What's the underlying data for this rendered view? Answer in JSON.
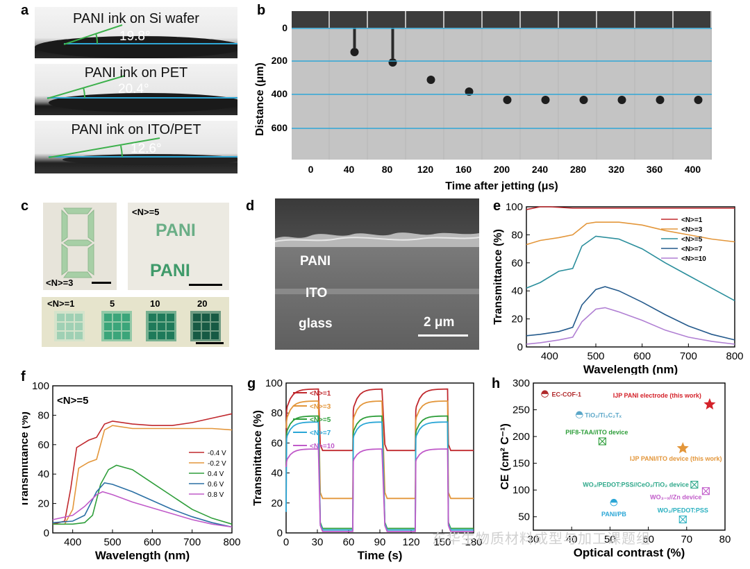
{
  "panel_labels": {
    "a": "a",
    "b": "b",
    "c": "c",
    "d": "d",
    "e": "e",
    "f": "f",
    "g": "g",
    "h": "h"
  },
  "panel_a": {
    "items": [
      {
        "title": "PANI ink on Si wafer",
        "angle": "19.8°"
      },
      {
        "title": "PANI ink on PET",
        "angle": "20.4°"
      },
      {
        "title": "PANI ink on ITO/PET",
        "angle": "12.6°"
      }
    ]
  },
  "panel_b": {
    "ylabel": "Distance (μm)",
    "xlabel": "Time after jetting (μs)",
    "yticks": [
      "0",
      "200",
      "400",
      "600"
    ],
    "xticks": [
      "0",
      "40",
      "80",
      "120",
      "160",
      "200",
      "240",
      "280",
      "320",
      "360",
      "400"
    ]
  },
  "panel_c": {
    "digit_label": "<N>=3",
    "pani_label": "<N>=5",
    "pani_text": "PANI",
    "squares_labels": [
      "<N>=1",
      "5",
      "10",
      "20"
    ]
  },
  "panel_d": {
    "layers": [
      "PANI",
      "ITO",
      "glass"
    ],
    "scale": "2 μm"
  },
  "chart_data": [
    {
      "panel": "e",
      "type": "line",
      "xlabel": "Wavelength (nm)",
      "ylabel": "Transmittance (%)",
      "xlim": [
        350,
        800
      ],
      "ylim": [
        0,
        100
      ],
      "xticks": [
        400,
        500,
        600,
        700,
        800
      ],
      "yticks": [
        0,
        20,
        40,
        60,
        80,
        100
      ],
      "legend": "top-right",
      "series": [
        {
          "name": "<N>=1",
          "color": "#c0282d",
          "x": [
            350,
            380,
            400,
            450,
            500,
            550,
            600,
            650,
            700,
            750,
            800
          ],
          "y": [
            98,
            100,
            100,
            99,
            99,
            99,
            99,
            99,
            99,
            99,
            99
          ]
        },
        {
          "name": "<N>=3",
          "color": "#e3963a",
          "x": [
            350,
            380,
            420,
            450,
            480,
            500,
            550,
            600,
            650,
            700,
            750,
            800
          ],
          "y": [
            73,
            76,
            78,
            80,
            88,
            89,
            89,
            87,
            83,
            80,
            77,
            75
          ]
        },
        {
          "name": "<N>=5",
          "color": "#2a8e9c",
          "x": [
            350,
            380,
            420,
            450,
            470,
            500,
            550,
            600,
            650,
            700,
            750,
            800
          ],
          "y": [
            42,
            46,
            54,
            56,
            72,
            79,
            77,
            70,
            60,
            51,
            42,
            33
          ]
        },
        {
          "name": "<N>=7",
          "color": "#245a8c",
          "x": [
            350,
            380,
            420,
            450,
            470,
            500,
            520,
            550,
            600,
            650,
            700,
            750,
            800
          ],
          "y": [
            8,
            9,
            11,
            14,
            30,
            41,
            43,
            40,
            32,
            23,
            15,
            9,
            5
          ]
        },
        {
          "name": "<N>=10",
          "color": "#b07fd3",
          "x": [
            350,
            380,
            420,
            450,
            470,
            500,
            520,
            550,
            600,
            650,
            700,
            750,
            800
          ],
          "y": [
            2,
            3,
            5,
            7,
            18,
            27,
            28,
            25,
            19,
            12,
            7,
            4,
            2
          ]
        }
      ]
    },
    {
      "panel": "f",
      "type": "line",
      "xlabel": "Wavelength (nm)",
      "ylabel": "Transmittance (%)",
      "annotation": "<N>=5",
      "xlim": [
        350,
        800
      ],
      "ylim": [
        0,
        100
      ],
      "xticks": [
        400,
        500,
        600,
        700,
        800
      ],
      "yticks": [
        0,
        20,
        40,
        60,
        80,
        100
      ],
      "legend": "right",
      "series": [
        {
          "name": "-0.4 V",
          "color": "#c0282d",
          "x": [
            350,
            380,
            395,
            410,
            440,
            460,
            480,
            500,
            550,
            600,
            650,
            700,
            750,
            800
          ],
          "y": [
            6,
            8,
            30,
            58,
            63,
            65,
            74,
            76,
            74,
            73,
            73,
            75,
            78,
            81
          ]
        },
        {
          "name": "-0.2 V",
          "color": "#e3963a",
          "x": [
            350,
            380,
            400,
            415,
            440,
            460,
            480,
            500,
            550,
            600,
            650,
            700,
            750,
            800
          ],
          "y": [
            6,
            6,
            16,
            44,
            48,
            50,
            70,
            73,
            71,
            71,
            71,
            71,
            71,
            70
          ]
        },
        {
          "name": "0.4 V",
          "color": "#2e9e3a",
          "x": [
            350,
            400,
            430,
            450,
            470,
            490,
            510,
            550,
            600,
            650,
            700,
            750,
            800
          ],
          "y": [
            6,
            6,
            7,
            12,
            33,
            43,
            46,
            43,
            34,
            25,
            16,
            10,
            6
          ]
        },
        {
          "name": "0.6 V",
          "color": "#2a6fa4",
          "x": [
            350,
            400,
            430,
            460,
            480,
            500,
            550,
            600,
            650,
            700,
            750,
            800
          ],
          "y": [
            7,
            8,
            12,
            28,
            34,
            33,
            28,
            22,
            16,
            11,
            7,
            4
          ]
        },
        {
          "name": "0.8 V",
          "color": "#c05ac9",
          "x": [
            350,
            400,
            430,
            460,
            475,
            500,
            550,
            600,
            650,
            700,
            750,
            800
          ],
          "y": [
            9,
            12,
            18,
            26,
            28,
            26,
            21,
            17,
            13,
            9,
            6,
            4
          ]
        }
      ]
    },
    {
      "panel": "g",
      "type": "line",
      "xlabel": "Time (s)",
      "ylabel": "Transmittance (%)",
      "xlim": [
        0,
        180
      ],
      "ylim": [
        0,
        100
      ],
      "xticks": [
        0,
        30,
        60,
        90,
        120,
        150,
        180
      ],
      "yticks": [
        0,
        20,
        40,
        60,
        80,
        100
      ],
      "legend": "top-left",
      "series": [
        {
          "name": "<N>=1",
          "color": "#c0282d",
          "high": 96,
          "low": 55,
          "start": 44
        },
        {
          "name": "<N>=3",
          "color": "#e3963a",
          "high": 88,
          "low": 23,
          "start": 70
        },
        {
          "name": "<N>=5",
          "color": "#2e9e3a",
          "high": 78,
          "low": 3,
          "start": 45
        },
        {
          "name": "<N>=7",
          "color": "#2aa6d6",
          "high": 74,
          "low": 2,
          "start": 14
        },
        {
          "name": "<N>=10",
          "color": "#c05ac9",
          "high": 56,
          "low": 1,
          "start": 44
        }
      ]
    },
    {
      "panel": "h",
      "type": "scatter",
      "xlabel": "Optical contrast (%)",
      "ylabel": "CE (cm² C⁻¹)",
      "xlim": [
        30,
        80
      ],
      "ylim": [
        25,
        300
      ],
      "xticks": [
        30,
        40,
        50,
        60,
        70,
        80
      ],
      "yticks": [
        50,
        100,
        150,
        200,
        250,
        300
      ],
      "points": [
        {
          "label": "EC-COF-1",
          "x": 33,
          "y": 280,
          "color": "#b0282a",
          "marker": "half-circle"
        },
        {
          "label": "IJP PANI electrode (this work)",
          "x": 76,
          "y": 260,
          "color": "#d4222a",
          "marker": "star"
        },
        {
          "label": "TiO₂/Ti₃C₂Tₓ",
          "x": 42,
          "y": 241,
          "color": "#5aa6c8",
          "marker": "half-circle"
        },
        {
          "label": "PIF8-TAA//ITO device",
          "x": 48,
          "y": 191,
          "color": "#2e9e3a",
          "marker": "cross-box"
        },
        {
          "label": "IJP PANI/ITO device (this work)",
          "x": 69,
          "y": 178,
          "color": "#e3963a",
          "marker": "star"
        },
        {
          "label": "WO₃/PEDOT:PSS//CeO₂/TiO₂ device",
          "x": 72,
          "y": 110,
          "color": "#2ea88a",
          "marker": "cross-box"
        },
        {
          "label": "WO₃₋ₓ//Zn device",
          "x": 75,
          "y": 98,
          "color": "#c05ac9",
          "marker": "cross-box"
        },
        {
          "label": "PANI/PB",
          "x": 51,
          "y": 77,
          "color": "#2aa6d6",
          "marker": "half-circle"
        },
        {
          "label": "WO₃/PEDOT:PSS",
          "x": 69,
          "y": 45,
          "color": "#2ab0c0",
          "marker": "cross-box"
        }
      ]
    }
  ],
  "watermark": "东华生物质材料成型与加工课题组"
}
